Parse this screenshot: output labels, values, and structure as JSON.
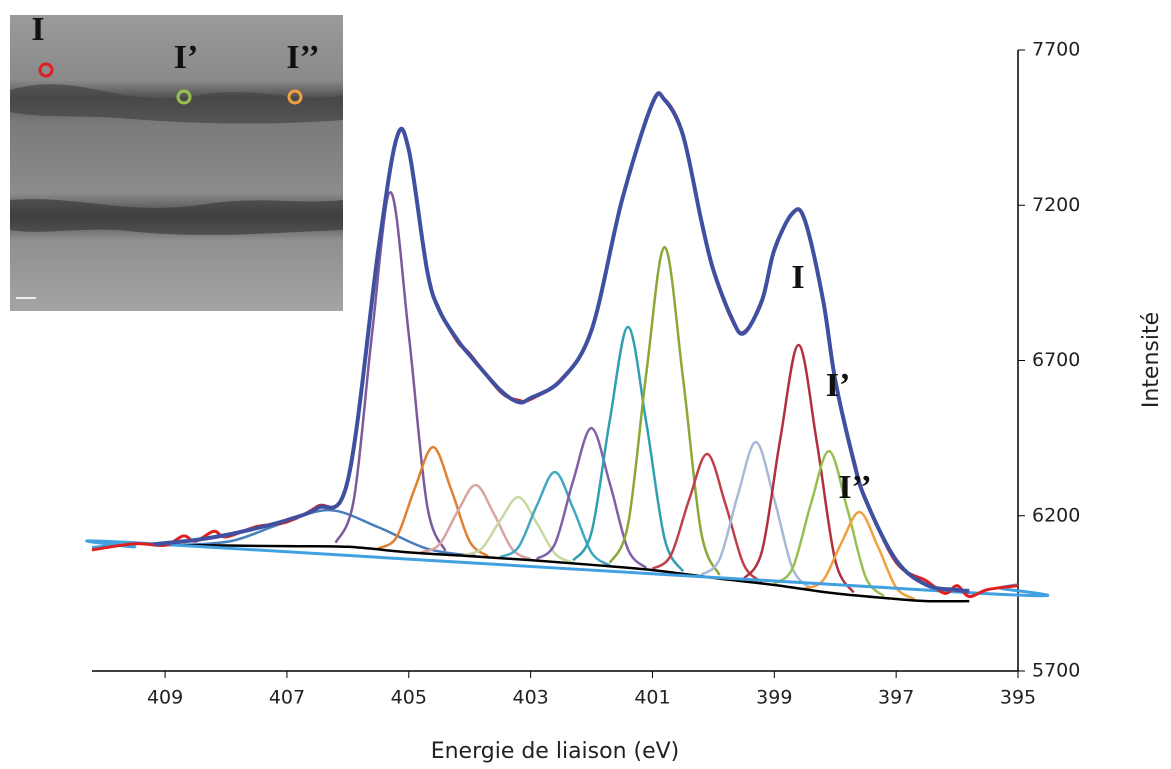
{
  "chart_data": {
    "type": "line",
    "x_label": "Energie de liaison (eV)",
    "y_label": "Intensité",
    "xlim": [
      410.2,
      395
    ],
    "ylim": [
      5700,
      7700
    ],
    "xticks": [
      409,
      407,
      405,
      403,
      401,
      399,
      397,
      395
    ],
    "yticks": [
      5700,
      6200,
      6700,
      7200,
      7700
    ],
    "peak_labels": [
      "I",
      "I’",
      "I’’"
    ],
    "inset_labels": [
      "I",
      "I’",
      "I’’"
    ],
    "series": [
      {
        "color": "#4a7ebb",
        "x": [
          408.7,
          407.9,
          407.1,
          406.3,
          405.5,
          404.7,
          403.9
        ],
        "values": [
          6106,
          6119,
          6174,
          6218,
          6163,
          6094,
          6070
        ]
      },
      {
        "color": "#7a5a9a",
        "x": [
          406.2,
          405.9,
          405.6,
          405.3,
          405.0,
          404.7,
          404.4
        ],
        "values": [
          6113,
          6254,
          6792,
          7242,
          6783,
          6234,
          6087
        ]
      },
      {
        "color": "#e08030",
        "x": [
          405.5,
          405.2,
          404.9,
          404.6,
          404.3,
          404.0,
          403.7
        ],
        "values": [
          6095,
          6131,
          6289,
          6421,
          6282,
          6117,
          6070
        ]
      },
      {
        "color": "#d8a4a4",
        "x": [
          404.8,
          404.5,
          404.2,
          403.9,
          403.6,
          403.3,
          403.0
        ],
        "values": [
          6083,
          6107,
          6213,
          6299,
          6205,
          6092,
          6060
        ]
      },
      {
        "color": "#c8d8a0",
        "x": [
          404.1,
          403.8,
          403.5,
          403.2,
          402.9,
          402.6,
          402.3
        ],
        "values": [
          6073,
          6095,
          6185,
          6260,
          6177,
          6078,
          6049
        ]
      },
      {
        "color": "#40a8c0",
        "x": [
          403.5,
          403.2,
          402.9,
          402.6,
          402.3,
          402.0,
          401.7
        ],
        "values": [
          6067,
          6099,
          6232,
          6341,
          6223,
          6081,
          6040
        ]
      },
      {
        "color": "#8060a8",
        "x": [
          402.9,
          402.6,
          402.3,
          402.0,
          401.7,
          401.4,
          401.1
        ],
        "values": [
          6061,
          6110,
          6314,
          6482,
          6304,
          6091,
          6032
        ]
      },
      {
        "color": "#30a0b0",
        "x": [
          402.3,
          402.0,
          401.7,
          401.4,
          401.1,
          400.8,
          400.5
        ],
        "values": [
          6056,
          6147,
          6508,
          6808,
          6498,
          6125,
          6021
        ]
      },
      {
        "color": "#8aa838",
        "x": [
          401.7,
          401.4,
          401.1,
          400.8,
          400.5,
          400.2,
          399.9
        ],
        "values": [
          6048,
          6173,
          6661,
          7065,
          6646,
          6146,
          6009
        ]
      },
      {
        "color": "#c0404a",
        "x": [
          401.0,
          400.7,
          400.4,
          400.1,
          399.8,
          399.5,
          399.2
        ],
        "values": [
          6029,
          6072,
          6251,
          6399,
          6236,
          6042,
          5986
        ]
      },
      {
        "color": "#a8b8d8",
        "x": [
          400.2,
          399.9,
          399.6,
          399.3,
          399.0,
          398.7,
          398.4
        ],
        "values": [
          6010,
          6059,
          6266,
          6437,
          6252,
          6030,
          5966
        ]
      },
      {
        "color": "#b03040",
        "x": [
          399.5,
          399.2,
          398.9,
          398.6,
          398.3,
          398.0,
          397.7
        ],
        "values": [
          5997,
          6088,
          6450,
          6750,
          6434,
          6056,
          5953
        ]
      },
      {
        "color": "#98c050",
        "x": [
          399.0,
          398.7,
          398.4,
          398.1,
          397.8,
          397.5,
          397.2
        ],
        "values": [
          5982,
          6031,
          6238,
          6408,
          6221,
          6002,
          5941
        ]
      },
      {
        "color": "#f0a040",
        "x": [
          398.5,
          398.2,
          397.9,
          397.6,
          397.3,
          397.0,
          396.7
        ],
        "values": [
          5966,
          5992,
          6112,
          6212,
          6101,
          5969,
          5932
        ]
      },
      {
        "color": "#000000",
        "x": [
          409.2,
          408,
          407,
          406,
          405,
          404,
          403,
          402,
          401,
          400,
          399,
          398,
          397,
          396.5,
          395.8
        ],
        "values": [
          6106,
          6104,
          6102,
          6100,
          6082,
          6070,
          6057,
          6042,
          6025,
          6000,
          5977,
          5950,
          5932,
          5925,
          5925
        ]
      },
      {
        "color": "#40a0e0",
        "x": [
          410.2,
          409.8,
          409.5,
          409.2,
          395.6,
          395.3,
          395
        ],
        "values": [
          6098,
          6104,
          6100,
          6110,
          5950,
          5968,
          5978
        ]
      },
      {
        "color": "#e02020",
        "x": [
          410.2,
          409.5,
          409,
          408.7,
          408.5,
          408.2,
          408,
          407.5,
          407,
          406.5,
          406,
          405.5,
          405.2,
          405,
          404.7,
          404.5,
          404.2,
          404,
          403.5,
          403.2,
          403,
          402.5,
          402,
          401.5,
          401,
          400.8,
          400.5,
          400.2,
          400,
          399.7,
          399.5,
          399.2,
          399,
          398.7,
          398.5,
          398.2,
          398,
          397.7,
          397.5,
          397,
          396.5,
          396.2,
          396,
          395.8,
          395.5,
          395
        ],
        "values": [
          6090,
          6110,
          6105,
          6135,
          6118,
          6150,
          6132,
          6165,
          6180,
          6230,
          6310,
          7052,
          7412,
          7382,
          6988,
          6866,
          6760,
          6722,
          6600,
          6572,
          6575,
          6640,
          6795,
          7220,
          7525,
          7542,
          7430,
          7148,
          6995,
          6832,
          6792,
          6890,
          7060,
          7172,
          7156,
          6890,
          6640,
          6372,
          6255,
          6050,
          5990,
          5950,
          5975,
          5940,
          5962,
          5975
        ]
      },
      {
        "color": "#4050a0",
        "x": [
          409.2,
          409,
          408.5,
          408,
          407.5,
          407,
          406.5,
          406,
          405.5,
          405.2,
          405,
          404.7,
          404.5,
          404.2,
          404,
          403.5,
          403.2,
          403,
          402.5,
          402,
          401.5,
          401,
          400.8,
          400.5,
          400.2,
          400,
          399.7,
          399.5,
          399.2,
          399,
          398.7,
          398.5,
          398.2,
          398,
          397.7,
          397.5,
          397,
          396.5,
          396,
          395.8
        ],
        "values": [
          6108,
          6112,
          6122,
          6138,
          6160,
          6186,
          6225,
          6315,
          7056,
          7416,
          7378,
          6991,
          6862,
          6766,
          6717,
          6605,
          6566,
          6579,
          6637,
          6798,
          7217,
          7529,
          7539,
          7426,
          7152,
          6991,
          6837,
          6788,
          6895,
          7056,
          7175,
          7152,
          6895,
          6637,
          6379,
          6251,
          6057,
          5977,
          5961,
          5958
        ]
      }
    ]
  }
}
